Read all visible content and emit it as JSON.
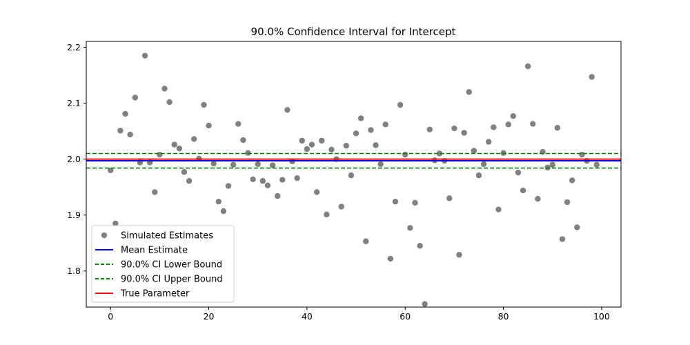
{
  "chart_data": {
    "type": "scatter",
    "title": "90.0% Confidence Interval for Intercept",
    "xlabel": "",
    "ylabel": "",
    "xlim": [
      -4.95,
      103.95
    ],
    "ylim": [
      1.7355,
      2.2105
    ],
    "xticks": [
      0,
      20,
      40,
      60,
      80,
      100
    ],
    "yticks": [
      1.8,
      1.9,
      2.0,
      2.1,
      2.2
    ],
    "grid": false,
    "legend_position": "lower-left",
    "x": [
      0,
      1,
      2,
      3,
      4,
      5,
      6,
      7,
      8,
      9,
      10,
      11,
      12,
      13,
      14,
      15,
      16,
      17,
      18,
      19,
      20,
      21,
      22,
      23,
      24,
      25,
      26,
      27,
      28,
      29,
      30,
      31,
      32,
      33,
      34,
      35,
      36,
      37,
      38,
      39,
      40,
      41,
      42,
      43,
      44,
      45,
      46,
      47,
      48,
      49,
      50,
      51,
      52,
      53,
      54,
      55,
      56,
      57,
      58,
      59,
      60,
      61,
      62,
      63,
      64,
      65,
      66,
      67,
      68,
      69,
      70,
      71,
      72,
      73,
      74,
      75,
      76,
      77,
      78,
      79,
      80,
      81,
      82,
      83,
      84,
      85,
      86,
      87,
      88,
      89,
      90,
      91,
      92,
      93,
      94,
      95,
      96,
      97,
      98,
      99
    ],
    "series": [
      {
        "name": "Simulated Estimates",
        "kind": "scatter",
        "color": "#808080",
        "values": [
          1.98,
          1.885,
          2.051,
          2.081,
          2.044,
          2.11,
          1.994,
          2.185,
          1.994,
          1.941,
          2.008,
          2.126,
          2.102,
          2.026,
          2.019,
          1.977,
          1.961,
          2.036,
          2.001,
          2.097,
          2.06,
          1.992,
          1.924,
          1.907,
          1.952,
          1.99,
          2.063,
          2.034,
          2.011,
          1.964,
          1.991,
          1.961,
          1.953,
          1.989,
          1.934,
          1.963,
          2.088,
          1.996,
          1.966,
          2.033,
          2.018,
          2.026,
          1.941,
          2.033,
          1.901,
          2.017,
          2.0,
          1.915,
          2.024,
          1.971,
          2.046,
          2.073,
          1.853,
          2.052,
          2.025,
          1.991,
          2.062,
          1.822,
          1.924,
          2.097,
          2.008,
          1.877,
          1.922,
          1.845,
          1.741,
          2.053,
          1.998,
          2.01,
          1.997,
          1.93,
          2.055,
          1.829,
          2.047,
          2.12,
          2.015,
          1.971,
          1.991,
          2.031,
          2.057,
          1.91,
          2.011,
          2.062,
          2.077,
          1.976,
          1.944,
          2.166,
          2.063,
          1.929,
          2.013,
          1.985,
          1.99,
          2.056,
          1.857,
          1.923,
          1.962,
          1.878,
          2.008,
          1.997,
          2.147,
          1.99
        ]
      },
      {
        "name": "Mean Estimate",
        "kind": "hline",
        "color": "#0000ff",
        "value": 1.997
      },
      {
        "name": "90.0% CI Lower Bound",
        "kind": "hline",
        "color": "#008000",
        "dashed": true,
        "value": 1.984
      },
      {
        "name": "90.0% CI Upper Bound",
        "kind": "hline",
        "color": "#008000",
        "dashed": true,
        "value": 2.01
      },
      {
        "name": "True Parameter",
        "kind": "hline",
        "color": "#ff0000",
        "value": 2.0
      }
    ]
  }
}
